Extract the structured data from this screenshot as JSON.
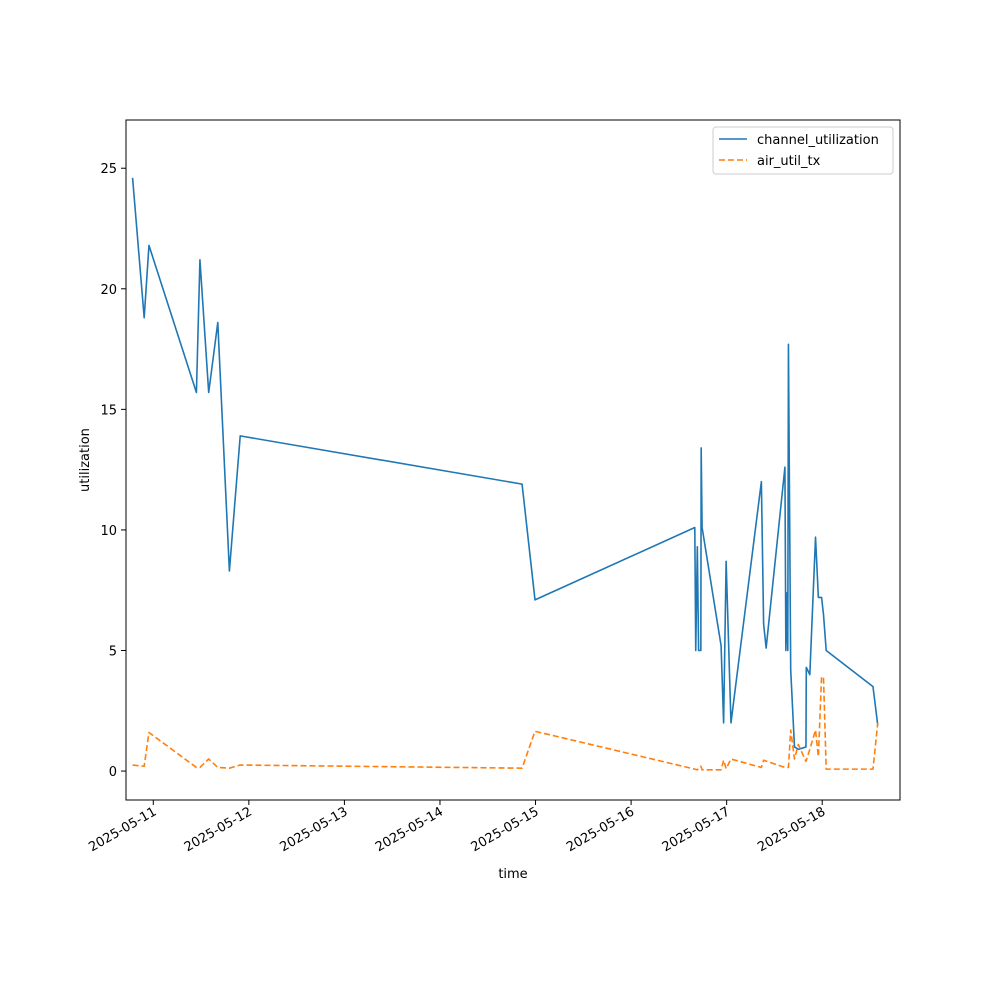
{
  "chart_data": {
    "type": "line",
    "title": "",
    "xlabel": "time",
    "ylabel": "utilization",
    "x_type": "datetime",
    "xlim": [
      "2025-05-10T17:09",
      "2025-05-18T19:32"
    ],
    "ylim": [
      -1.2,
      27.0
    ],
    "x_ticks": [
      "2025-05-11",
      "2025-05-12",
      "2025-05-13",
      "2025-05-14",
      "2025-05-15",
      "2025-05-16",
      "2025-05-17",
      "2025-05-18"
    ],
    "y_ticks": [
      0,
      5,
      10,
      15,
      20,
      25
    ],
    "grid": false,
    "legend_position": "upper right",
    "series": [
      {
        "name": "channel_utilization",
        "color": "#1f77b4",
        "style": "solid",
        "points": [
          [
            "2025-05-10T18:48",
            24.6
          ],
          [
            "2025-05-10T21:43",
            18.8
          ],
          [
            "2025-05-10T22:55",
            21.8
          ],
          [
            "2025-05-11T10:50",
            15.7
          ],
          [
            "2025-05-11T11:43",
            21.2
          ],
          [
            "2025-05-11T13:55",
            15.7
          ],
          [
            "2025-05-11T16:12",
            18.6
          ],
          [
            "2025-05-11T19:07",
            8.3
          ],
          [
            "2025-05-11T21:50",
            13.9
          ],
          [
            "2025-05-14T20:37",
            11.9
          ],
          [
            "2025-05-14T23:52",
            7.1
          ],
          [
            "2025-05-16T16:00",
            10.1
          ],
          [
            "2025-05-16T16:14",
            5.0
          ],
          [
            "2025-05-16T16:38",
            9.3
          ],
          [
            "2025-05-16T16:57",
            5.0
          ],
          [
            "2025-05-16T17:31",
            5.0
          ],
          [
            "2025-05-16T17:36",
            13.4
          ],
          [
            "2025-05-16T17:50",
            10.1
          ],
          [
            "2025-05-16T22:36",
            5.2
          ],
          [
            "2025-05-16T23:14",
            2.0
          ],
          [
            "2025-05-16T23:52",
            8.7
          ],
          [
            "2025-05-17T01:05",
            2.0
          ],
          [
            "2025-05-17T08:43",
            12.0
          ],
          [
            "2025-05-17T09:17",
            6.1
          ],
          [
            "2025-05-17T09:55",
            5.1
          ],
          [
            "2025-05-17T14:38",
            12.6
          ],
          [
            "2025-05-17T14:52",
            5.0
          ],
          [
            "2025-05-17T15:12",
            7.4
          ],
          [
            "2025-05-17T15:21",
            5.0
          ],
          [
            "2025-05-17T15:31",
            17.7
          ],
          [
            "2025-05-17T16:05",
            4.2
          ],
          [
            "2025-05-17T17:02",
            1.0
          ],
          [
            "2025-05-17T18:00",
            0.9
          ],
          [
            "2025-05-17T19:55",
            1.0
          ],
          [
            "2025-05-17T20:00",
            4.3
          ],
          [
            "2025-05-17T20:53",
            4.0
          ],
          [
            "2025-05-17T22:19",
            9.7
          ],
          [
            "2025-05-17T23:02",
            7.2
          ],
          [
            "2025-05-17T23:50",
            7.2
          ],
          [
            "2025-05-18T00:19",
            6.5
          ],
          [
            "2025-05-18T01:00",
            5.0
          ],
          [
            "2025-05-18T12:45",
            3.5
          ],
          [
            "2025-05-18T13:57",
            1.9
          ]
        ]
      },
      {
        "name": "air_util_tx",
        "color": "#ff7f0e",
        "style": "dashed",
        "points": [
          [
            "2025-05-10T18:48",
            0.25
          ],
          [
            "2025-05-10T21:43",
            0.2
          ],
          [
            "2025-05-10T22:55",
            1.6
          ],
          [
            "2025-05-11T10:50",
            0.15
          ],
          [
            "2025-05-11T11:43",
            0.15
          ],
          [
            "2025-05-11T13:55",
            0.5
          ],
          [
            "2025-05-11T16:12",
            0.15
          ],
          [
            "2025-05-11T19:07",
            0.12
          ],
          [
            "2025-05-11T21:50",
            0.25
          ],
          [
            "2025-05-14T20:37",
            0.12
          ],
          [
            "2025-05-14T23:52",
            1.65
          ],
          [
            "2025-05-16T16:00",
            0.08
          ],
          [
            "2025-05-16T16:38",
            0.05
          ],
          [
            "2025-05-16T17:31",
            0.2
          ],
          [
            "2025-05-16T17:50",
            0.05
          ],
          [
            "2025-05-16T22:36",
            0.05
          ],
          [
            "2025-05-16T23:14",
            0.45
          ],
          [
            "2025-05-16T23:52",
            0.1
          ],
          [
            "2025-05-17T01:05",
            0.5
          ],
          [
            "2025-05-17T08:43",
            0.15
          ],
          [
            "2025-05-17T09:17",
            0.45
          ],
          [
            "2025-05-17T14:38",
            0.15
          ],
          [
            "2025-05-17T15:31",
            0.15
          ],
          [
            "2025-05-17T16:05",
            1.7
          ],
          [
            "2025-05-17T17:02",
            0.5
          ],
          [
            "2025-05-17T18:00",
            1.1
          ],
          [
            "2025-05-17T19:55",
            0.4
          ],
          [
            "2025-05-17T20:53",
            0.9
          ],
          [
            "2025-05-17T22:19",
            1.7
          ],
          [
            "2025-05-17T23:02",
            0.6
          ],
          [
            "2025-05-17T23:50",
            3.9
          ],
          [
            "2025-05-18T00:19",
            3.9
          ],
          [
            "2025-05-18T01:00",
            0.08
          ],
          [
            "2025-05-18T12:45",
            0.08
          ],
          [
            "2025-05-18T13:57",
            2.0
          ]
        ]
      }
    ]
  }
}
